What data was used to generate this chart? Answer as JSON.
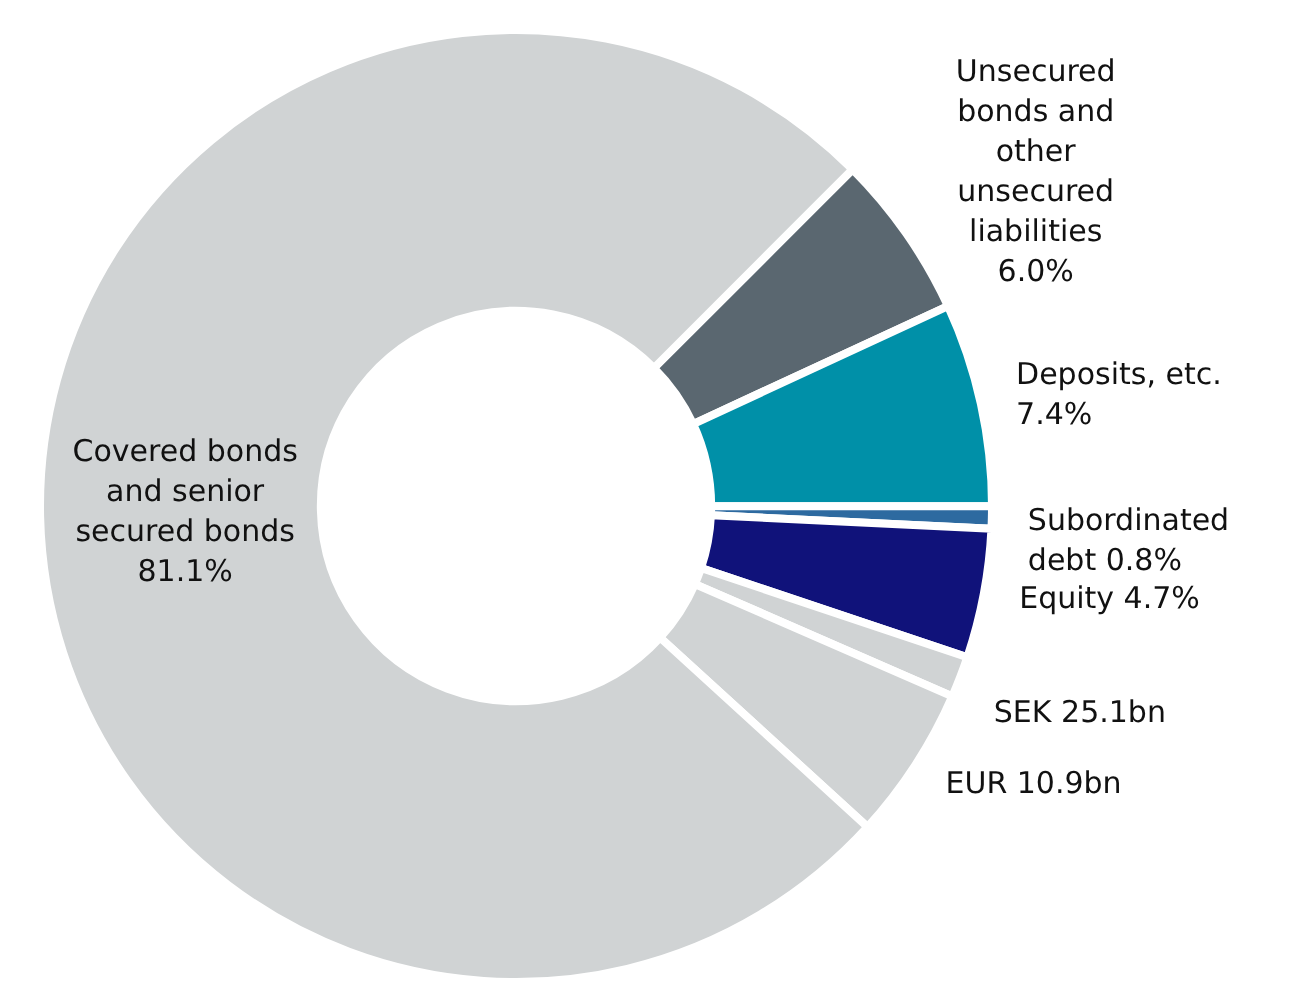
{
  "chart_data": {
    "type": "donut",
    "categories": [
      "Unsecured bonds and other unsecured liabilities",
      "Deposits, etc.",
      "Subordinated debt",
      "Equity",
      "SEK 25.1bn",
      "EUR 10.9bn",
      "Covered bonds and senior secured bonds"
    ],
    "values": [
      6.0,
      7.4,
      0.8,
      4.7,
      1.5,
      5.6,
      81.1
    ],
    "value_labels": [
      "6.0%",
      "7.4%",
      "0.8%",
      "4.7%",
      null,
      null,
      "81.1%"
    ],
    "colors": [
      "#5a6770",
      "#0090a8",
      "#2d6aa0",
      "#10127a",
      "#d0d3d4",
      "#d0d3d4",
      "#d0d3d4"
    ],
    "legend": false
  }
}
